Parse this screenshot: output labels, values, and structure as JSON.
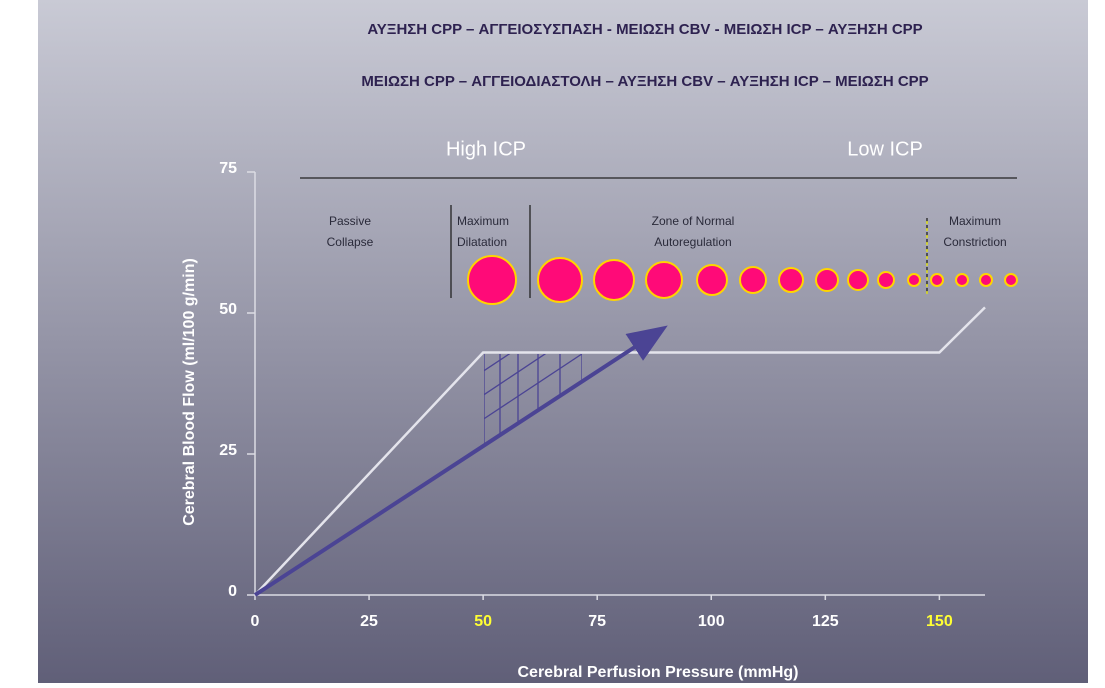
{
  "header": {
    "lines": [
      "ΑΥΞΗΣΗ CPP – ΑΓΓΕΙΟΣΥΣΠΑΣΗ - ΜΕΙΩΣΗ CBV  - ΜΕΙΩΣΗ ICP – ΑΥΞΗΣΗ CPP",
      "ΜΕΙΩΣΗ CPP – ΑΓΓΕΙΟΔΙΑΣΤΟΛΗ – ΑΥΞΗΣΗ CBV – ΑΥΞΗΣΗ ICP – ΜΕΙΩΣΗ CPP"
    ]
  },
  "chart_data": {
    "type": "line",
    "zones": [
      "High ICP",
      "Low ICP"
    ],
    "notes": [
      {
        "lines": [
          "Passive",
          "Collapse"
        ]
      },
      {
        "lines": [
          "Maximum",
          "Dilatation"
        ]
      },
      {
        "lines": [
          "Zone of Normal",
          "Autoregulation"
        ]
      },
      {
        "lines": [
          "Maximum",
          "Constriction"
        ]
      }
    ],
    "x_label": "Cerebral Perfusion Pressure (mmHg)",
    "y_label": "Cerebral Blood Flow (ml/100 g/min)",
    "xlim": [
      0,
      160
    ],
    "ylim": [
      0,
      75
    ],
    "xticks": [
      0,
      25,
      50,
      75,
      100,
      125,
      150
    ],
    "xtick_colors": [
      "#ffffff",
      "#ffffff",
      "#ffff33",
      "#ffffff",
      "#ffffff",
      "#ffffff",
      "#ffff33"
    ],
    "yticks": [
      0,
      25,
      50,
      75
    ],
    "curve": {
      "color": "#e4e4ec",
      "x": [
        0,
        50,
        150,
        160
      ],
      "values": [
        0,
        43,
        43,
        51
      ]
    },
    "arrow": {
      "color": "#4b4494",
      "x": [
        0,
        89
      ],
      "values": [
        0,
        47
      ]
    }
  }
}
